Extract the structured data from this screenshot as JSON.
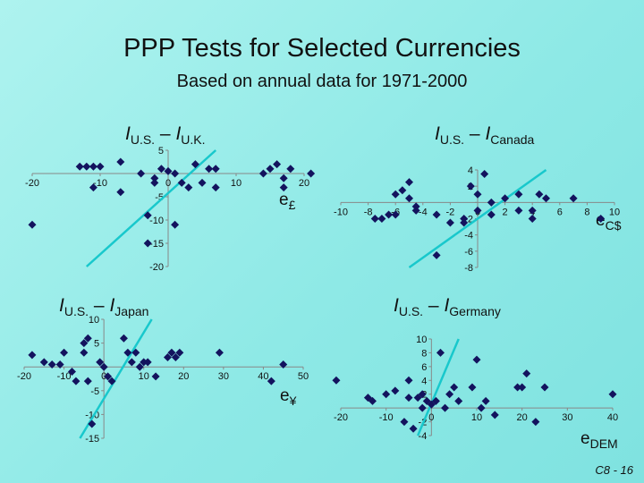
{
  "title": "PPP Tests for Selected Currencies",
  "subtitle": "Based on annual data for 1971-2000",
  "slide_number": "C8 - 16",
  "colors": {
    "point": "#13135e",
    "line": "#18c8cc",
    "axis": "#888888"
  },
  "chart_data": [
    {
      "type": "scatter",
      "label_left": "I",
      "label_left_sub": "U.S.",
      "label_right": "I",
      "label_right_sub": "U.K.",
      "x_var": "e",
      "x_var_sub": "£",
      "xlim": [
        -20,
        20
      ],
      "ylim": [
        -20,
        5
      ],
      "xticks": [
        -20,
        -10,
        0,
        10,
        20
      ],
      "yticks": [
        5,
        0,
        -5,
        -10,
        -15,
        -20
      ],
      "fit_line": [
        [
          -12,
          -20
        ],
        [
          7,
          5
        ]
      ],
      "points": [
        [
          -20,
          -11
        ],
        [
          -13,
          1.5
        ],
        [
          -12,
          1.5
        ],
        [
          -11,
          1.5
        ],
        [
          -10,
          1.5
        ],
        [
          -11,
          -3
        ],
        [
          -7,
          2.5
        ],
        [
          -7,
          -4
        ],
        [
          -4,
          0
        ],
        [
          -3,
          -9
        ],
        [
          -2,
          -1
        ],
        [
          -2,
          -2
        ],
        [
          -1,
          1
        ],
        [
          0,
          0.5
        ],
        [
          1,
          0
        ],
        [
          2,
          -2
        ],
        [
          3,
          -3
        ],
        [
          4,
          2
        ],
        [
          5,
          -2
        ],
        [
          6,
          1
        ],
        [
          7,
          1
        ],
        [
          7,
          -3
        ],
        [
          14,
          0
        ],
        [
          15,
          1
        ],
        [
          16,
          2
        ],
        [
          17,
          -3
        ],
        [
          17,
          -1
        ],
        [
          18,
          1
        ],
        [
          21,
          0
        ],
        [
          -3,
          -15
        ],
        [
          1,
          -11
        ]
      ]
    },
    {
      "type": "scatter",
      "label_left": "I",
      "label_left_sub": "U.S.",
      "label_right": "I",
      "label_right_sub": "Canada",
      "x_var": "e",
      "x_var_sub": "C$",
      "xlim": [
        -10,
        10
      ],
      "ylim": [
        -8,
        4
      ],
      "xticks": [
        -10,
        -8,
        -6,
        -4,
        -2,
        0,
        2,
        4,
        6,
        8,
        10
      ],
      "yticks": [
        4,
        2,
        0,
        -2,
        -4,
        -6,
        -8
      ],
      "fit_line": [
        [
          -5,
          -8
        ],
        [
          5,
          4
        ]
      ],
      "points": [
        [
          -7.5,
          -2
        ],
        [
          -7,
          -2
        ],
        [
          -6.5,
          -1.5
        ],
        [
          -6,
          -1.5
        ],
        [
          -6,
          1
        ],
        [
          -5.5,
          1.5
        ],
        [
          -5,
          2.5
        ],
        [
          -5,
          0.5
        ],
        [
          -4.5,
          -0.5
        ],
        [
          -4.5,
          -1
        ],
        [
          -3,
          -6.5
        ],
        [
          -3,
          -1.5
        ],
        [
          -2,
          -2.5
        ],
        [
          -1,
          -2.5
        ],
        [
          -1,
          -2
        ],
        [
          -0.5,
          2
        ],
        [
          0,
          1
        ],
        [
          0,
          -1
        ],
        [
          0.5,
          3.5
        ],
        [
          1,
          -1.5
        ],
        [
          1,
          0
        ],
        [
          2,
          0.5
        ],
        [
          3,
          1
        ],
        [
          3,
          -1
        ],
        [
          4,
          -1
        ],
        [
          4,
          -2
        ],
        [
          4.5,
          1
        ],
        [
          5,
          0.5
        ],
        [
          7,
          0.5
        ],
        [
          9,
          -2
        ]
      ]
    },
    {
      "type": "scatter",
      "label_left": "I",
      "label_left_sub": "U.S.",
      "label_right": "I",
      "label_right_sub": "Japan",
      "x_var": "e",
      "x_var_sub": "¥",
      "xlim": [
        -20,
        50
      ],
      "ylim": [
        -15,
        10
      ],
      "xticks": [
        -20,
        -10,
        0,
        10,
        20,
        30,
        40,
        50
      ],
      "yticks": [
        10,
        5,
        0,
        -5,
        -10,
        -15
      ],
      "fit_line": [
        [
          -6,
          -15
        ],
        [
          12,
          10
        ]
      ],
      "points": [
        [
          -18,
          2.5
        ],
        [
          -15,
          1
        ],
        [
          -13,
          0.5
        ],
        [
          -11,
          0.5
        ],
        [
          -10,
          3
        ],
        [
          -8,
          -1
        ],
        [
          -7,
          -3
        ],
        [
          -5,
          5
        ],
        [
          -5,
          3
        ],
        [
          -4,
          6
        ],
        [
          -4,
          -3
        ],
        [
          -3,
          -12
        ],
        [
          -1,
          1
        ],
        [
          0,
          0
        ],
        [
          1,
          -2
        ],
        [
          2,
          -3
        ],
        [
          5,
          6
        ],
        [
          6,
          3
        ],
        [
          7,
          1
        ],
        [
          8,
          3
        ],
        [
          9,
          0
        ],
        [
          10,
          1
        ],
        [
          11,
          1
        ],
        [
          13,
          -2
        ],
        [
          16,
          2
        ],
        [
          17,
          3
        ],
        [
          18,
          2
        ],
        [
          19,
          3
        ],
        [
          29,
          3
        ],
        [
          42,
          -3
        ],
        [
          45,
          0.5
        ]
      ]
    },
    {
      "type": "scatter",
      "label_left": "I",
      "label_left_sub": "U.S.",
      "label_right": "I",
      "label_right_sub": "Germany",
      "x_var": "e",
      "x_var_sub": "DEM",
      "xlim": [
        -20,
        40
      ],
      "ylim": [
        -4,
        10
      ],
      "xticks": [
        -20,
        -10,
        0,
        10,
        20,
        30,
        40
      ],
      "yticks": [
        10,
        8,
        6,
        4,
        2,
        0,
        -2,
        -4
      ],
      "fit_line": [
        [
          -3,
          -4
        ],
        [
          6,
          10
        ]
      ],
      "points": [
        [
          -21,
          4
        ],
        [
          -14,
          1.5
        ],
        [
          -13,
          1
        ],
        [
          -10,
          2
        ],
        [
          -8,
          2.5
        ],
        [
          -5,
          4
        ],
        [
          -5,
          1.5
        ],
        [
          -6,
          -2
        ],
        [
          -4,
          -3
        ],
        [
          -3,
          1.5
        ],
        [
          -2,
          0
        ],
        [
          -2,
          2
        ],
        [
          -1,
          1
        ],
        [
          0,
          0.5
        ],
        [
          1,
          1
        ],
        [
          2,
          8
        ],
        [
          3,
          0
        ],
        [
          4,
          2
        ],
        [
          5,
          3
        ],
        [
          6,
          1
        ],
        [
          9,
          3
        ],
        [
          10,
          7
        ],
        [
          11,
          0
        ],
        [
          12,
          1
        ],
        [
          14,
          -1
        ],
        [
          19,
          3
        ],
        [
          20,
          3
        ],
        [
          21,
          5
        ],
        [
          23,
          -2
        ],
        [
          25,
          3
        ],
        [
          40,
          2
        ]
      ]
    }
  ]
}
